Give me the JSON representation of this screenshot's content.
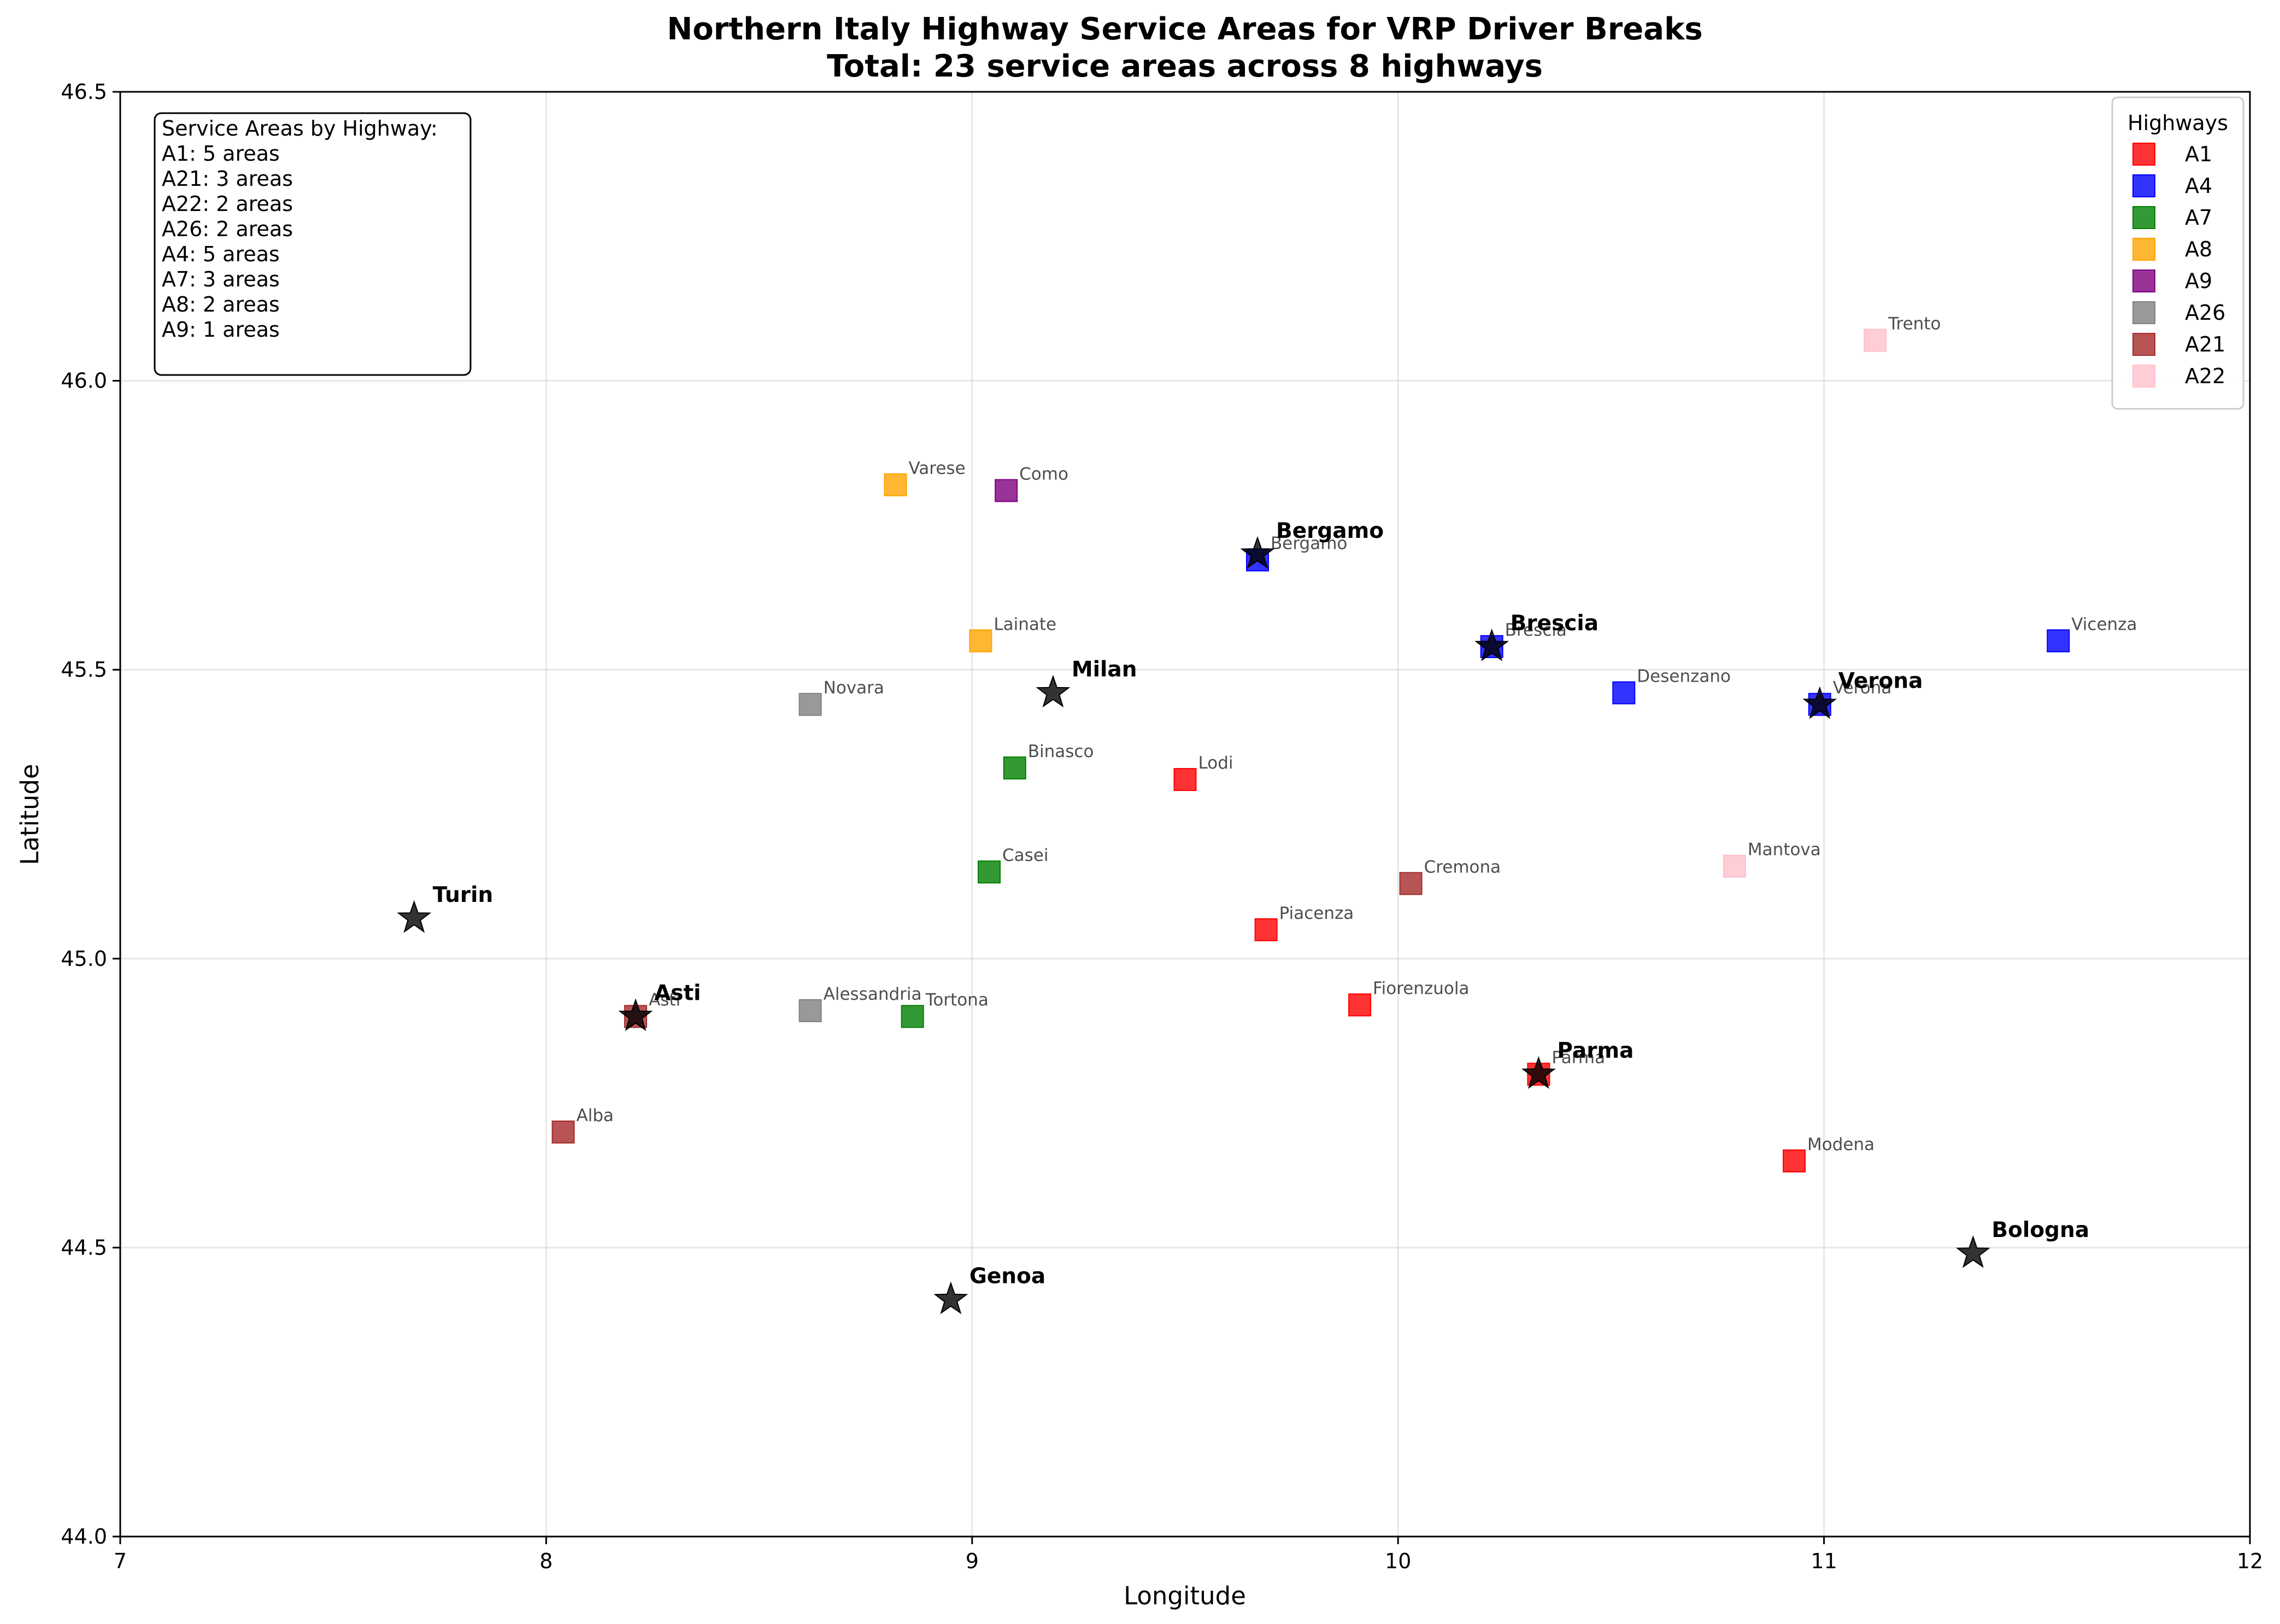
{
  "chart_data": {
    "type": "scatter",
    "title_lines": [
      "Northern Italy Highway Service Areas for VRP Driver Breaks",
      "Total: 23 service areas across 8 highways"
    ],
    "xlabel": "Longitude",
    "ylabel": "Latitude",
    "xlim": [
      7,
      12
    ],
    "ylim": [
      44.0,
      46.5
    ],
    "x_ticks": [
      "7",
      "8",
      "9",
      "10",
      "11",
      "12"
    ],
    "y_ticks": [
      "44.0",
      "44.5",
      "45.0",
      "45.5",
      "46.0",
      "46.5"
    ],
    "grid": true,
    "legend": {
      "title": "Highways",
      "placement": "top-right",
      "entries": [
        "A1",
        "A4",
        "A7",
        "A8",
        "A9",
        "A26",
        "A21",
        "A22"
      ]
    },
    "highway_colors": {
      "A1": "#ff0000",
      "A4": "#0000ff",
      "A7": "#008000",
      "A8": "#ffa500",
      "A9": "#800080",
      "A26": "#808080",
      "A21": "#a52a2a",
      "A22": "#ffc0cb"
    },
    "info_box": {
      "placement": "top-left",
      "lines": [
        "Service Areas by Highway:",
        "A1: 5 areas",
        "A21: 3 areas",
        "A22: 2 areas",
        "A26: 2 areas",
        "A4: 5 areas",
        "A7: 3 areas",
        "A8: 2 areas",
        "A9: 1 areas"
      ]
    },
    "service_areas": [
      {
        "name": "Lodi",
        "highway": "A1",
        "lon": 9.5,
        "lat": 45.31
      },
      {
        "name": "Piacenza",
        "highway": "A1",
        "lon": 9.69,
        "lat": 45.05
      },
      {
        "name": "Fiorenzuola",
        "highway": "A1",
        "lon": 9.91,
        "lat": 44.92
      },
      {
        "name": "Parma",
        "highway": "A1",
        "lon": 10.33,
        "lat": 44.8
      },
      {
        "name": "Modena",
        "highway": "A1",
        "lon": 10.93,
        "lat": 44.65
      },
      {
        "name": "Bergamo",
        "highway": "A4",
        "lon": 9.67,
        "lat": 45.69
      },
      {
        "name": "Brescia",
        "highway": "A4",
        "lon": 10.22,
        "lat": 45.54
      },
      {
        "name": "Desenzano",
        "highway": "A4",
        "lon": 10.53,
        "lat": 45.46
      },
      {
        "name": "Verona",
        "highway": "A4",
        "lon": 10.99,
        "lat": 45.44
      },
      {
        "name": "Vicenza",
        "highway": "A4",
        "lon": 11.55,
        "lat": 45.55
      },
      {
        "name": "Binasco",
        "highway": "A7",
        "lon": 9.1,
        "lat": 45.33
      },
      {
        "name": "Casei",
        "highway": "A7",
        "lon": 9.04,
        "lat": 45.15
      },
      {
        "name": "Tortona",
        "highway": "A7",
        "lon": 8.86,
        "lat": 44.9
      },
      {
        "name": "Varese",
        "highway": "A8",
        "lon": 8.82,
        "lat": 45.82
      },
      {
        "name": "Lainate",
        "highway": "A8",
        "lon": 9.02,
        "lat": 45.55
      },
      {
        "name": "Como",
        "highway": "A9",
        "lon": 9.08,
        "lat": 45.81
      },
      {
        "name": "Novara",
        "highway": "A26",
        "lon": 8.62,
        "lat": 45.44
      },
      {
        "name": "Alessandria",
        "highway": "A26",
        "lon": 8.62,
        "lat": 44.91
      },
      {
        "name": "Asti",
        "highway": "A21",
        "lon": 8.21,
        "lat": 44.9
      },
      {
        "name": "Alba",
        "highway": "A21",
        "lon": 8.04,
        "lat": 44.7
      },
      {
        "name": "Cremona",
        "highway": "A21",
        "lon": 10.03,
        "lat": 45.13
      },
      {
        "name": "Mantova",
        "highway": "A22",
        "lon": 10.79,
        "lat": 45.16
      },
      {
        "name": "Trento",
        "highway": "A22",
        "lon": 11.12,
        "lat": 46.07
      }
    ],
    "cities": [
      {
        "name": "Turin",
        "lon": 7.69,
        "lat": 45.07
      },
      {
        "name": "Milan",
        "lon": 9.19,
        "lat": 45.46
      },
      {
        "name": "Genoa",
        "lon": 8.95,
        "lat": 44.41
      },
      {
        "name": "Bologna",
        "lon": 11.35,
        "lat": 44.49
      },
      {
        "name": "Asti",
        "lon": 8.21,
        "lat": 44.9
      },
      {
        "name": "Parma",
        "lon": 10.33,
        "lat": 44.8
      },
      {
        "name": "Bergamo",
        "lon": 9.67,
        "lat": 45.7
      },
      {
        "name": "Brescia",
        "lon": 10.22,
        "lat": 45.54
      },
      {
        "name": "Verona",
        "lon": 10.99,
        "lat": 45.44
      }
    ]
  }
}
